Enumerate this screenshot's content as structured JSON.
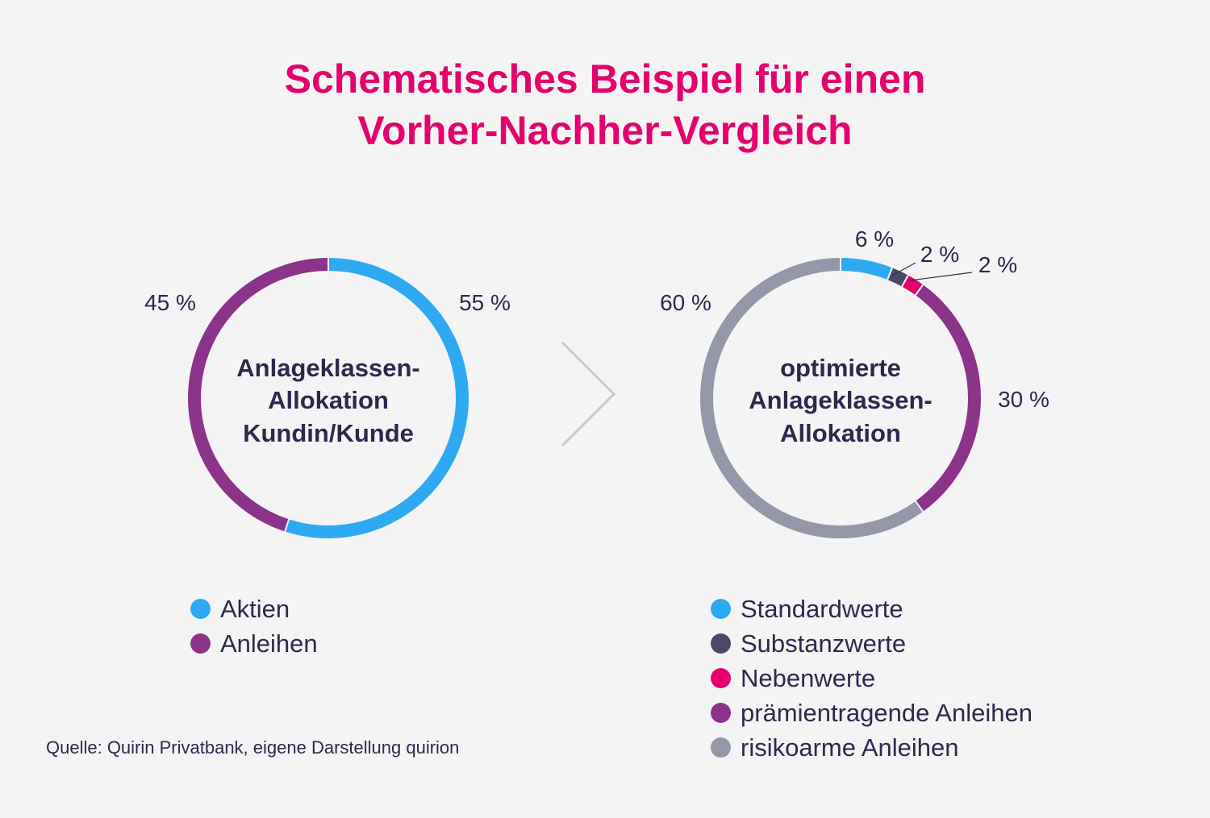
{
  "title": {
    "line1": "Schematisches Beispiel für einen",
    "line2": "Vorher-Nachher-Vergleich"
  },
  "source": "Quelle: Quirin Privatbank, eigene Darstellung quirion",
  "colors": {
    "title": "#e5006d",
    "text": "#2b2a4c",
    "background": "#f4f4f4",
    "arrow": "#c8c8d2"
  },
  "separator_icon": "chevron-right-icon",
  "chart_data": [
    {
      "type": "donut",
      "center_label": [
        "Anlageklassen-",
        "Allokation",
        "Kundin/Kunde"
      ],
      "slices": [
        {
          "name": "Aktien",
          "value": 55,
          "label": "55 %",
          "color": "#2eaaf4"
        },
        {
          "name": "Anleihen",
          "value": 45,
          "label": "45 %",
          "color": "#8c3489"
        }
      ]
    },
    {
      "type": "donut",
      "center_label": [
        "optimierte",
        "Anlageklassen-",
        "Allokation"
      ],
      "slices": [
        {
          "name": "Standardwerte",
          "value": 6,
          "label": "6 %",
          "color": "#2eaaf4"
        },
        {
          "name": "Substanzwerte",
          "value": 2,
          "label": "2 %",
          "color": "#4a4a68"
        },
        {
          "name": "Nebenwerte",
          "value": 2,
          "label": "2 %",
          "color": "#e5006d"
        },
        {
          "name": "prämientragende Anleihen",
          "value": 30,
          "label": "30 %",
          "color": "#8c3489"
        },
        {
          "name": "risikoarme Anleihen",
          "value": 60,
          "label": "60 %",
          "color": "#9497a8"
        }
      ]
    }
  ]
}
